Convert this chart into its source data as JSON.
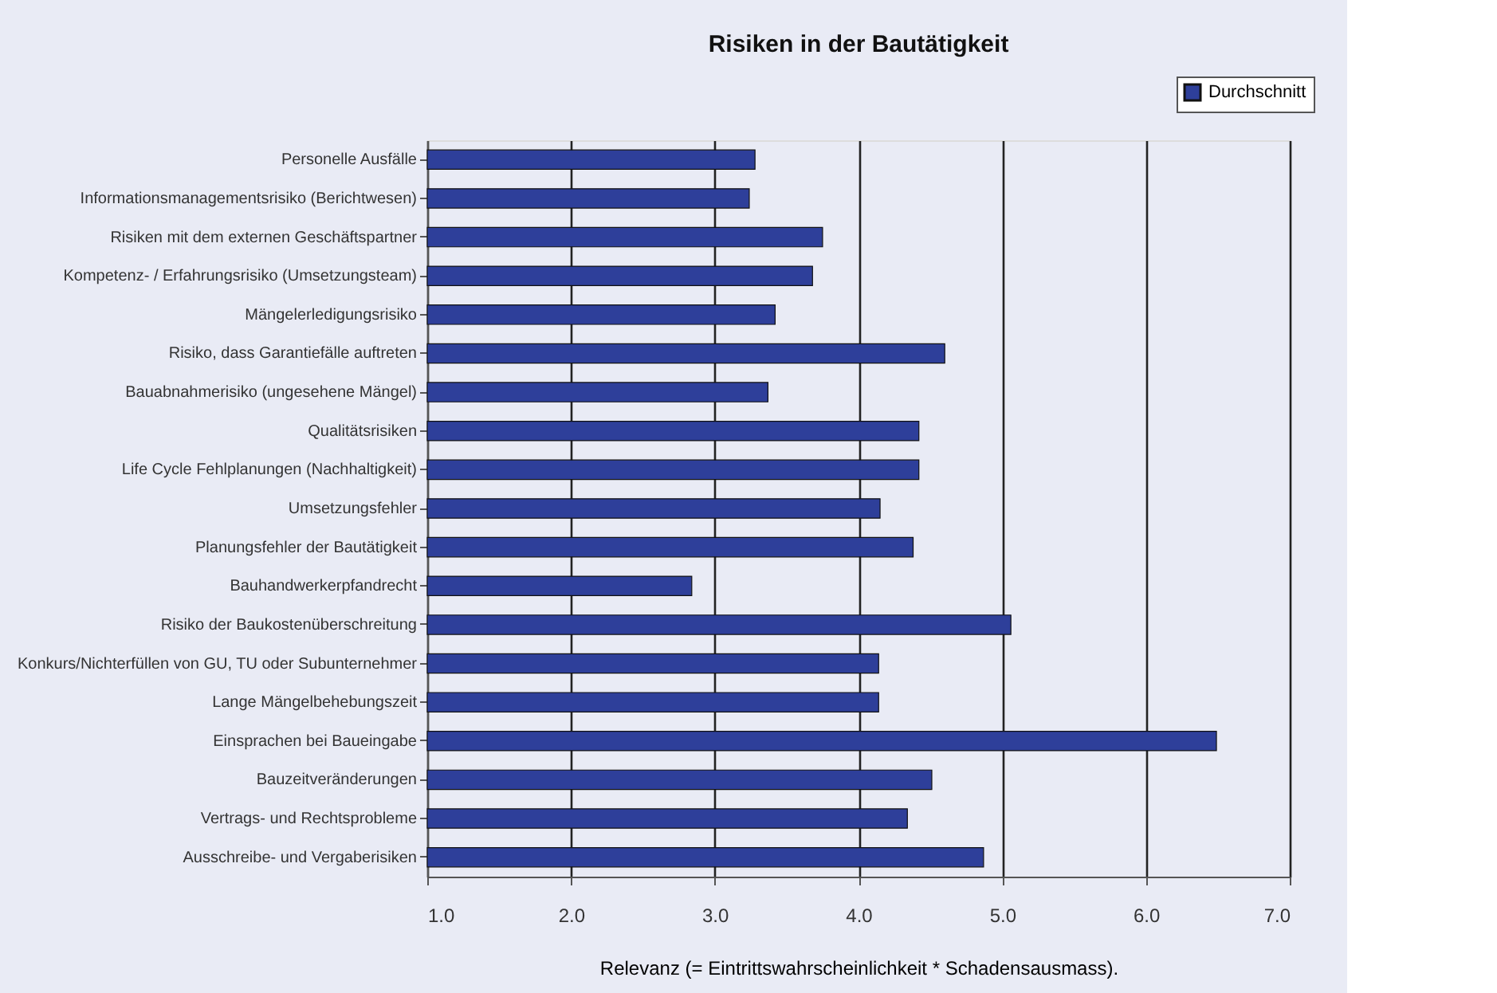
{
  "chart_data": {
    "type": "bar",
    "orientation": "horizontal",
    "title": "Risiken in der Bautätigkeit",
    "xlabel": "Relevanz  (= Eintrittswahrscheinlichkeit * Schadensausmass).",
    "categories": [
      "Personelle Ausfälle",
      "Informationsmanagementsrisiko (Berichtwesen)",
      "Risiken mit dem externen Geschäftspartner",
      "Kompetenz- / Erfahrungsrisiko (Umsetzungsteam)",
      "Mängelerledigungsrisiko",
      "Risiko, dass Garantiefälle auftreten",
      "Bauabnahmerisiko (ungesehene Mängel)",
      "Qualitätsrisiken",
      "Life Cycle Fehlplanungen (Nachhaltigkeit)",
      "Umsetzungsfehler",
      "Planungsfehler der Bautätigkeit",
      "Bauhandwerkerpfandrecht",
      "Risiko der Baukostenüberschreitung",
      "Konkurs/Nichterfüllen von GU, TU oder Subunternehmer",
      "Lange Mängelbehebungszeit",
      "Einsprachen bei Baueingabe",
      "Bauzeitveränderungen",
      "Vertrags- und Rechtsprobleme",
      "Ausschreibe- und Vergaberisiken"
    ],
    "series": [
      {
        "name": "Durchschnitt",
        "color": "#2e3f9a",
        "values": [
          3.28,
          3.24,
          3.75,
          3.68,
          3.42,
          4.6,
          3.37,
          4.42,
          4.42,
          4.15,
          4.38,
          2.84,
          5.06,
          4.14,
          4.14,
          6.49,
          4.51,
          4.34,
          4.87
        ]
      }
    ],
    "xlim": [
      1,
      7
    ],
    "xticks": [
      {
        "value": 1,
        "label": "1.0"
      },
      {
        "value": 2,
        "label": "2.0"
      },
      {
        "value": 3,
        "label": "3.0"
      },
      {
        "value": 4,
        "label": "4.0"
      },
      {
        "value": 5,
        "label": "5.0"
      },
      {
        "value": 6,
        "label": "6.0"
      },
      {
        "value": 7,
        "label": "7.0"
      }
    ],
    "grid": "x",
    "legend": "top right"
  }
}
